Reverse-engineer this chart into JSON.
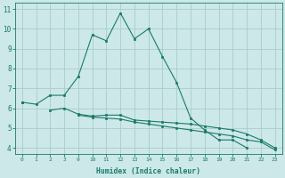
{
  "xlabel": "Humidex (Indice chaleur)",
  "bg_color": "#cce8e8",
  "grid_color": "#aacccc",
  "line_color": "#1a7a6a",
  "ylim": [
    3.7,
    11.3
  ],
  "yticks": [
    4,
    5,
    6,
    7,
    8,
    9,
    10,
    11
  ],
  "xtick_labels": [
    "0",
    "1",
    "2",
    "3",
    "9",
    "10",
    "11",
    "12",
    "13",
    "14",
    "15",
    "16",
    "17",
    "18",
    "19",
    "20",
    "21",
    "22",
    "23"
  ],
  "line1_y": [
    6.3,
    6.2,
    6.65,
    6.65,
    7.6,
    9.7,
    9.4,
    10.8,
    9.5,
    10.0,
    8.6,
    7.3,
    5.5,
    4.9,
    4.4,
    4.4,
    4.0,
    null,
    null
  ],
  "line2_y": [
    6.3,
    null,
    5.9,
    6.0,
    5.7,
    5.6,
    5.65,
    5.65,
    5.4,
    5.35,
    5.3,
    5.25,
    5.2,
    5.1,
    5.0,
    4.9,
    4.7,
    4.4,
    4.0
  ],
  "line3_y": [
    6.3,
    null,
    null,
    null,
    5.65,
    5.55,
    5.5,
    5.45,
    5.3,
    5.2,
    5.1,
    5.0,
    4.9,
    4.8,
    4.7,
    4.6,
    4.4,
    4.3,
    3.9
  ]
}
